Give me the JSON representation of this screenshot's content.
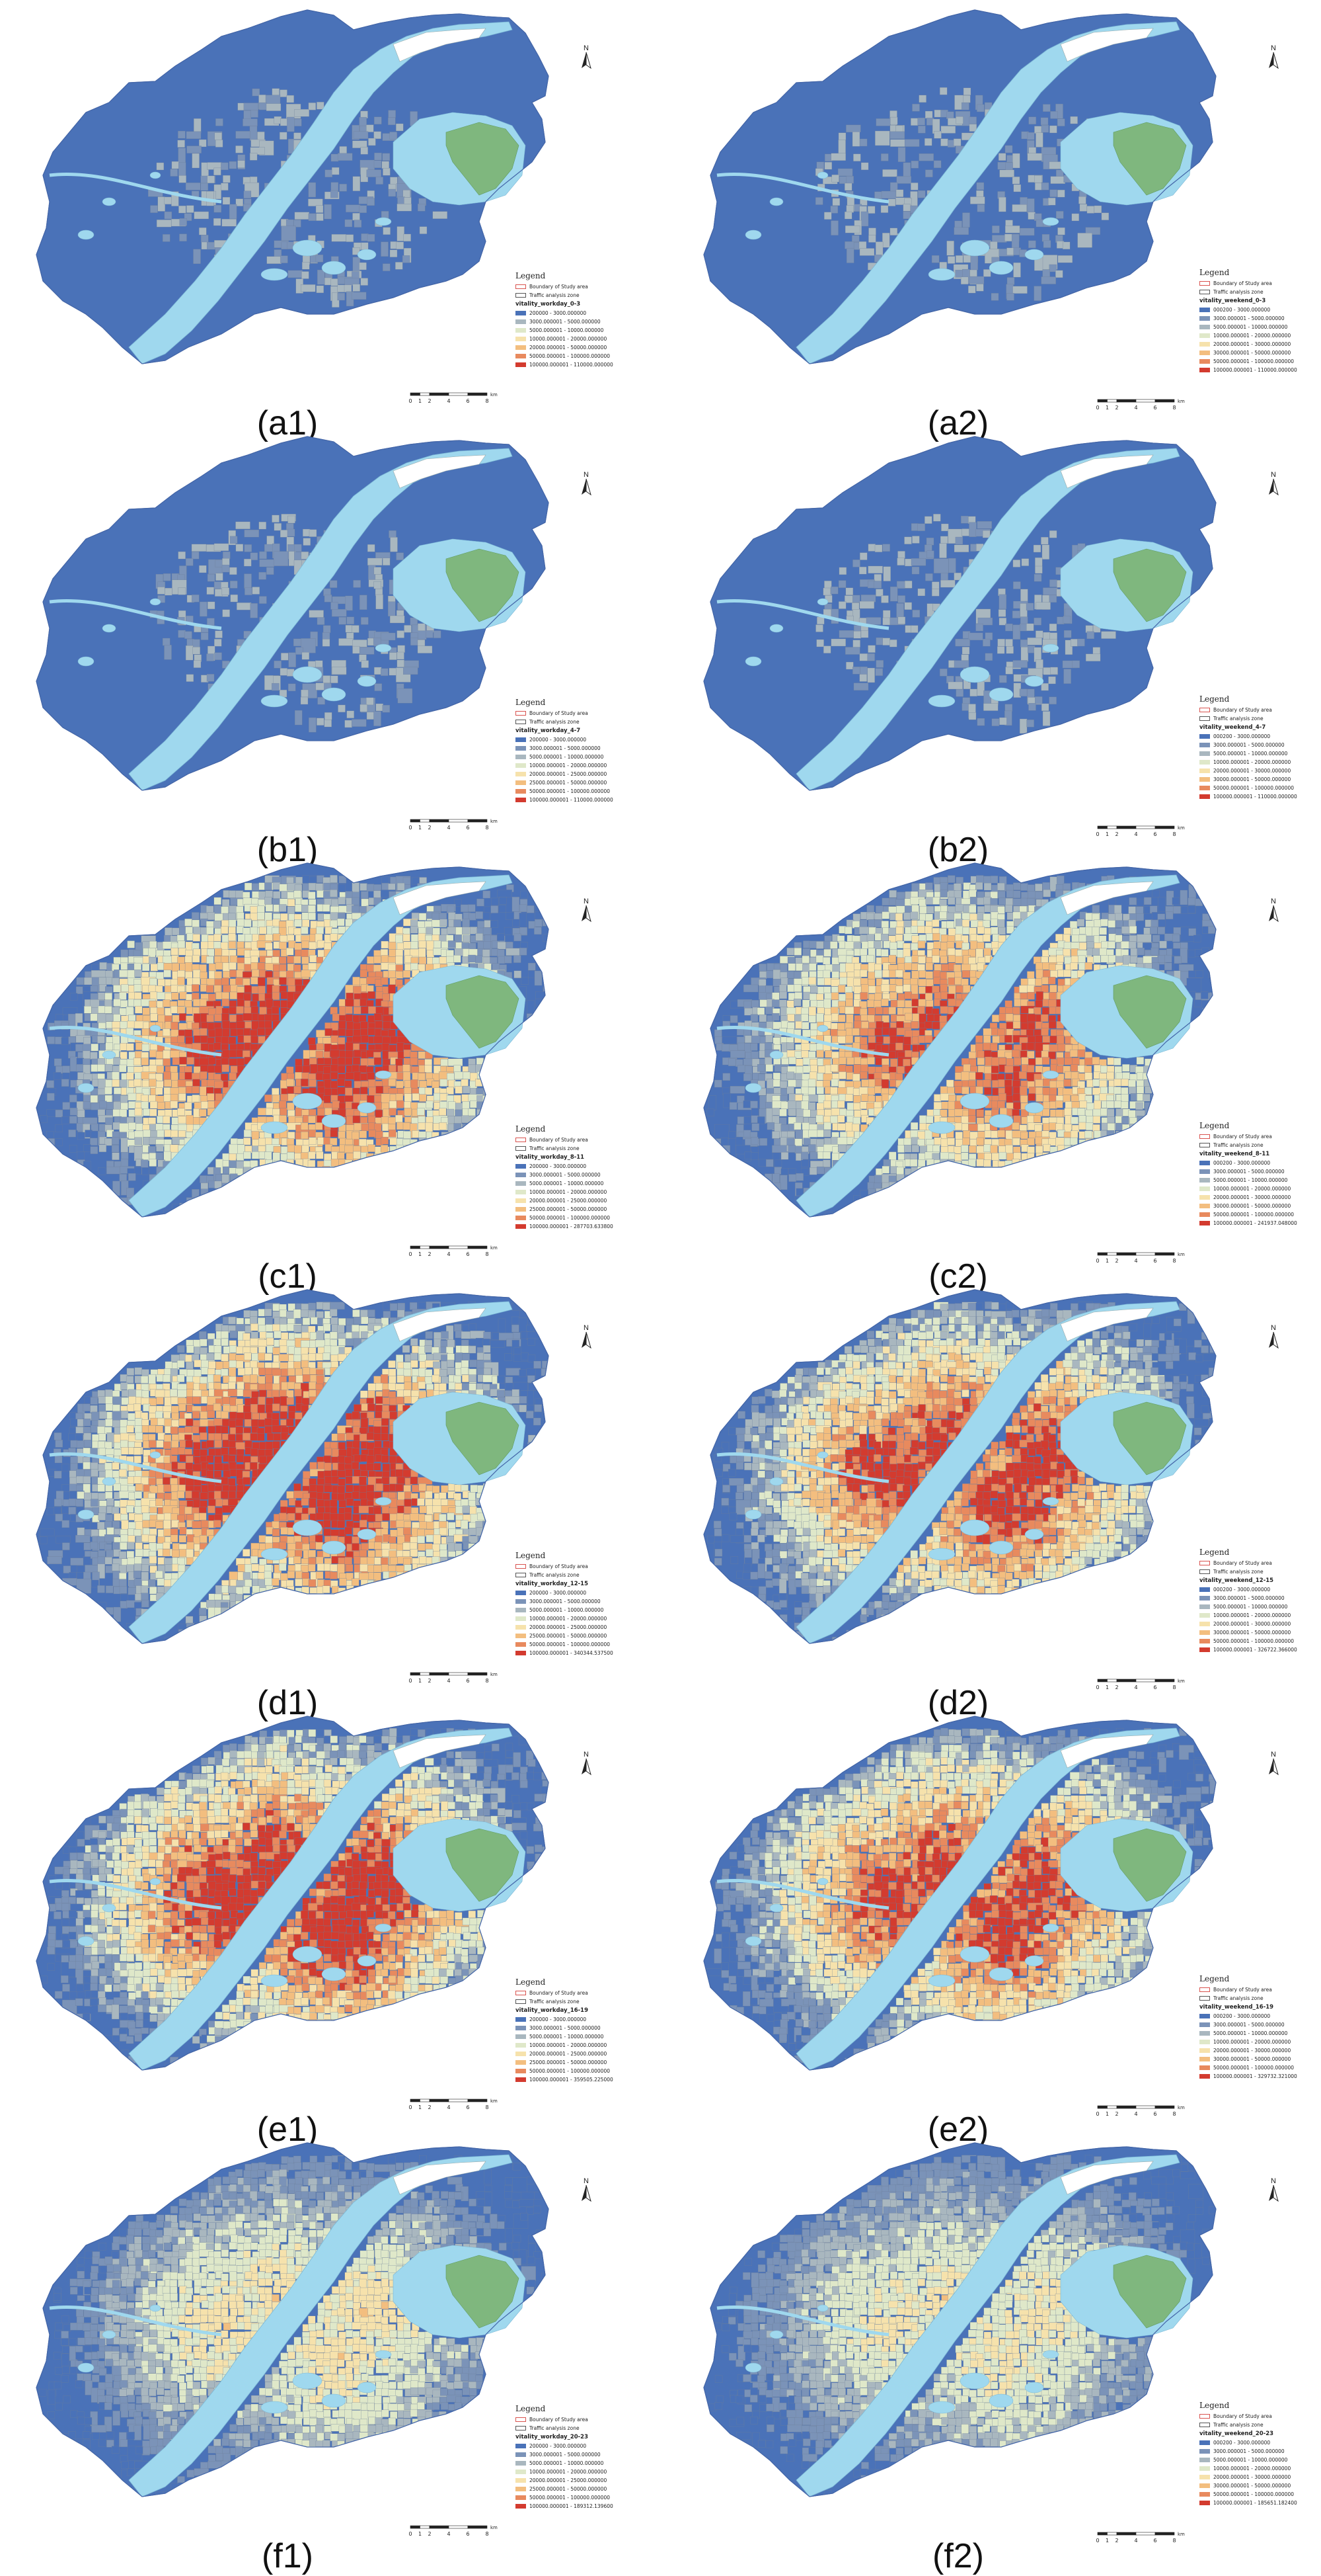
{
  "legend_title": "Legend",
  "legend_boundary": "Boundary of Study area",
  "legend_taz": "Traffic analysis zone",
  "scale_ticks": [
    "0",
    "1",
    "2",
    "4",
    "6",
    "8"
  ],
  "scale_unit": "km",
  "north_label": "N",
  "colors": {
    "water": "#9fd8ee",
    "river": "#9fd8ee",
    "green": "#7fb77e",
    "boundary": "#d9534f",
    "classes": [
      "#4a72b8",
      "#7b93b8",
      "#a9b7bf",
      "#dfe8c9",
      "#f6e2ac",
      "#f3be7f",
      "#e88a5e",
      "#d33b2f"
    ]
  },
  "panels": [
    {
      "id": "a1",
      "label": "(a1)",
      "field": "vitality_workday_0-3",
      "activity": 0.05,
      "classes": [
        "200000 - 3000.000000",
        "3000.000001 - 5000.000000",
        "5000.000001 - 10000.000000",
        "10000.000001 - 20000.000000",
        "20000.000001 - 50000.000000",
        "50000.000001 - 100000.000000",
        "100000.000001 - 110000.000000"
      ]
    },
    {
      "id": "a2",
      "label": "(a2)",
      "field": "vitality_weekend_0-3",
      "activity": 0.05,
      "classes": [
        "000200 - 3000.000000",
        "3000.000001 - 5000.000000",
        "5000.000001 - 10000.000000",
        "10000.000001 - 20000.000000",
        "20000.000001 - 30000.000000",
        "30000.000001 - 50000.000000",
        "50000.000001 - 100000.000000",
        "100000.000001 - 110000.000000"
      ]
    },
    {
      "id": "b1",
      "label": "(b1)",
      "field": "vitality_workday_4-7",
      "activity": 0.09,
      "classes": [
        "200000 - 3000.000000",
        "3000.000001 - 5000.000000",
        "5000.000001 - 10000.000000",
        "10000.000001 - 20000.000000",
        "20000.000001 - 25000.000000",
        "25000.000001 - 50000.000000",
        "50000.000001 - 100000.000000",
        "100000.000001 - 110000.000000"
      ]
    },
    {
      "id": "b2",
      "label": "(b2)",
      "field": "vitality_weekend_4-7",
      "activity": 0.08,
      "classes": [
        "000200 - 3000.000000",
        "3000.000001 - 5000.000000",
        "5000.000001 - 10000.000000",
        "10000.000001 - 20000.000000",
        "20000.000001 - 30000.000000",
        "30000.000001 - 50000.000000",
        "50000.000001 - 100000.000000",
        "100000.000001 - 110000.000000"
      ]
    },
    {
      "id": "c1",
      "label": "(c1)",
      "field": "vitality_workday_8-11",
      "activity": 0.85,
      "classes": [
        "200000 - 3000.000000",
        "3000.000001 - 5000.000000",
        "5000.000001 - 10000.000000",
        "10000.000001 - 20000.000000",
        "20000.000001 - 25000.000000",
        "25000.000001 - 50000.000000",
        "50000.000001 - 100000.000000",
        "100000.000001 - 287703.633800"
      ]
    },
    {
      "id": "c2",
      "label": "(c2)",
      "field": "vitality_weekend_8-11",
      "activity": 0.75,
      "classes": [
        "000200 - 3000.000000",
        "3000.000001 - 5000.000000",
        "5000.000001 - 10000.000000",
        "10000.000001 - 20000.000000",
        "20000.000001 - 30000.000000",
        "30000.000001 - 50000.000000",
        "50000.000001 - 100000.000000",
        "100000.000001 - 241937.048000"
      ]
    },
    {
      "id": "d1",
      "label": "(d1)",
      "field": "vitality_workday_12-15",
      "activity": 0.9,
      "classes": [
        "200000 - 3000.000000",
        "3000.000001 - 5000.000000",
        "5000.000001 - 10000.000000",
        "10000.000001 - 20000.000000",
        "20000.000001 - 25000.000000",
        "25000.000001 - 50000.000000",
        "50000.000001 - 100000.000000",
        "100000.000001 - 340344.537500"
      ]
    },
    {
      "id": "d2",
      "label": "(d2)",
      "field": "vitality_weekend_12-15",
      "activity": 0.82,
      "classes": [
        "000200 - 3000.000000",
        "3000.000001 - 5000.000000",
        "5000.000001 - 10000.000000",
        "10000.000001 - 20000.000000",
        "20000.000001 - 30000.000000",
        "30000.000001 - 50000.000000",
        "50000.000001 - 100000.000000",
        "100000.000001 - 326722.366000"
      ]
    },
    {
      "id": "e1",
      "label": "(e1)",
      "field": "vitality_workday_16-19",
      "activity": 0.88,
      "classes": [
        "200000 - 3000.000000",
        "3000.000001 - 5000.000000",
        "5000.000001 - 10000.000000",
        "10000.000001 - 20000.000000",
        "20000.000001 - 25000.000000",
        "25000.000001 - 50000.000000",
        "50000.000001 - 100000.000000",
        "100000.000001 - 359505.225000"
      ]
    },
    {
      "id": "e2",
      "label": "(e2)",
      "field": "vitality_weekend_16-19",
      "activity": 0.8,
      "classes": [
        "000200 - 3000.000000",
        "3000.000001 - 5000.000000",
        "5000.000001 - 10000.000000",
        "10000.000001 - 20000.000000",
        "20000.000001 - 30000.000000",
        "30000.000001 - 50000.000000",
        "50000.000001 - 100000.000000",
        "100000.000001 - 329732.321000"
      ]
    },
    {
      "id": "f1",
      "label": "(f1)",
      "field": "vitality_workday_20-23",
      "activity": 0.45,
      "classes": [
        "200000 - 3000.000000",
        "3000.000001 - 5000.000000",
        "5000.000001 - 10000.000000",
        "10000.000001 - 20000.000000",
        "20000.000001 - 25000.000000",
        "25000.000001 - 50000.000000",
        "50000.000001 - 100000.000000",
        "100000.000001 - 189312.139600"
      ]
    },
    {
      "id": "f2",
      "label": "(f2)",
      "field": "vitality_weekend_20-23",
      "activity": 0.42,
      "classes": [
        "000200 - 3000.000000",
        "3000.000001 - 5000.000000",
        "5000.000001 - 10000.000000",
        "10000.000001 - 20000.000000",
        "20000.000001 - 30000.000000",
        "30000.000001 - 50000.000000",
        "50000.000001 - 100000.000000",
        "100000.000001 - 185651.182400"
      ]
    }
  ]
}
